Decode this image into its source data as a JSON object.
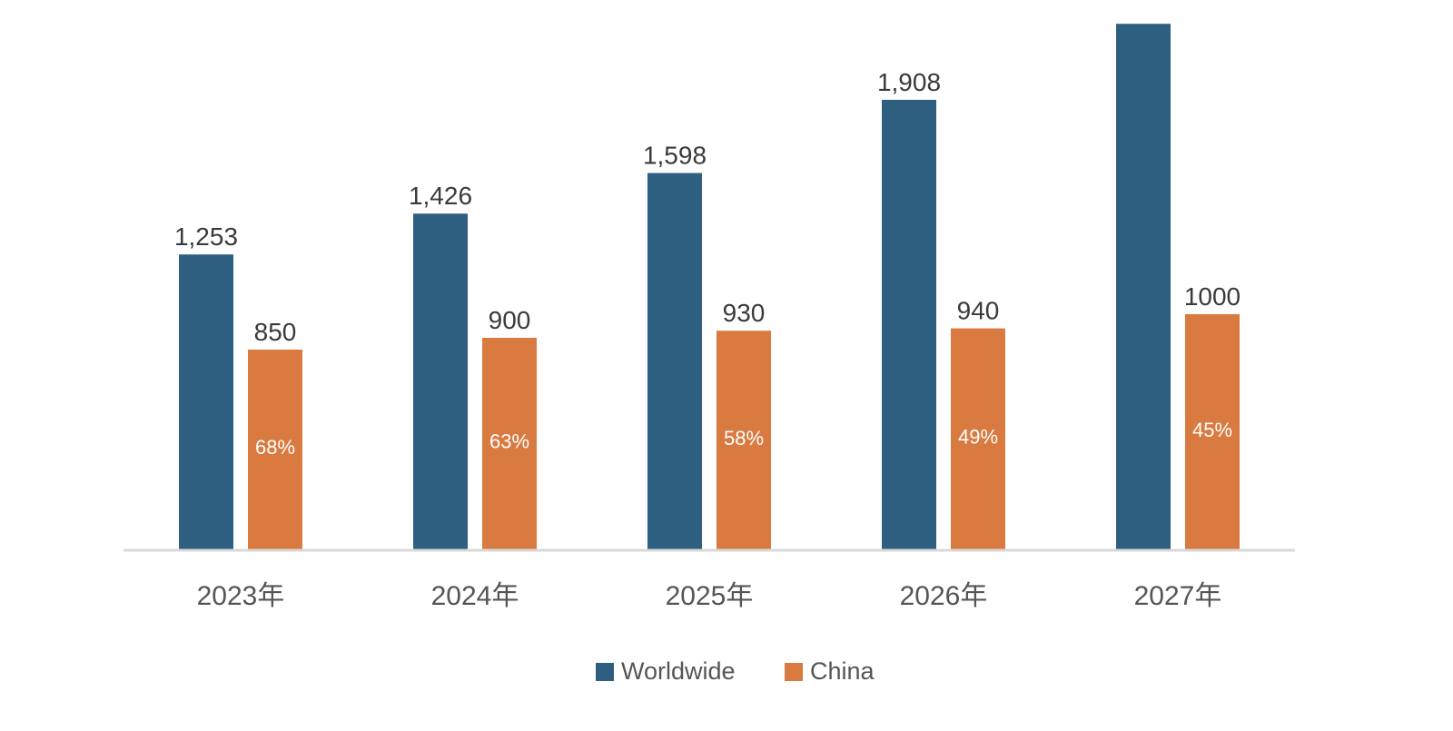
{
  "chart_data": {
    "type": "bar",
    "title": "",
    "xlabel": "",
    "ylabel": "",
    "categories": [
      "2023年",
      "2024年",
      "2025年",
      "2026年",
      "2027年"
    ],
    "series": [
      {
        "name": "Worldwide",
        "values": [
          1253,
          1426,
          1598,
          1908,
          2230
        ],
        "labels": [
          "1,253",
          "1,426",
          "1,598",
          "1,908",
          ""
        ]
      },
      {
        "name": "China",
        "values": [
          850,
          900,
          930,
          940,
          1000
        ],
        "labels": [
          "850",
          "900",
          "930",
          "940",
          "1000"
        ],
        "share_labels": [
          "68%",
          "63%",
          "58%",
          "49%",
          "45%"
        ]
      }
    ],
    "ylim": [
      0,
      2300
    ],
    "grid": false,
    "legend_position": "bottom-center",
    "colors": {
      "Worldwide": "#2f5f80",
      "China": "#d97a40",
      "axis": "#d9d9d9"
    }
  }
}
